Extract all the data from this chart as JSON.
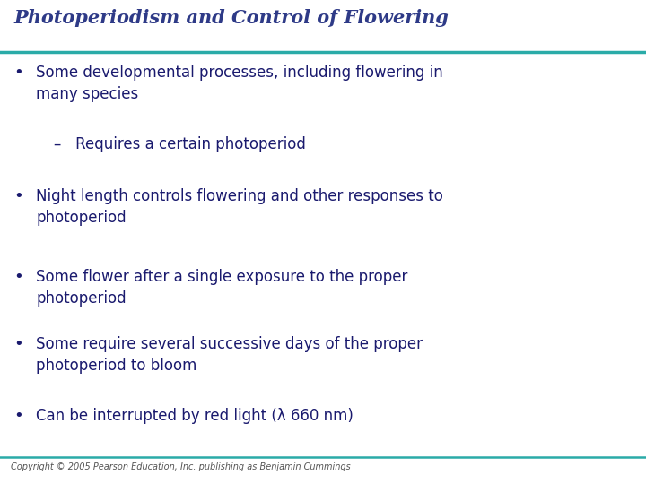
{
  "title": "Photoperiodism and Control of Flowering",
  "title_color": "#2E3A87",
  "title_fontsize": 15,
  "title_style": "italic",
  "title_weight": "bold",
  "line_color": "#2AABA8",
  "bg_color": "#FFFFFF",
  "bullet_color": "#1a1a6e",
  "bullet_fontsize": 12,
  "sub_bullet_fontsize": 12,
  "copyright_text": "Copyright © 2005 Pearson Education, Inc. publishing as Benjamin Cummings",
  "copyright_fontsize": 7,
  "bullets": [
    {
      "type": "bullet",
      "text": "Some developmental processes, including flowering in\nmany species"
    },
    {
      "type": "sub",
      "text": "–   Requires a certain photoperiod"
    },
    {
      "type": "bullet",
      "text": "Night length controls flowering and other responses to\nphotoperiod"
    },
    {
      "type": "bullet",
      "text": "Some flower after a single exposure to the proper\nphotoperiod"
    },
    {
      "type": "bullet",
      "text": "Some require several successive days of the proper\nphotoperiod to bloom"
    },
    {
      "type": "bullet",
      "text": "Can be interrupted by red light (λ 660 nm)"
    }
  ]
}
